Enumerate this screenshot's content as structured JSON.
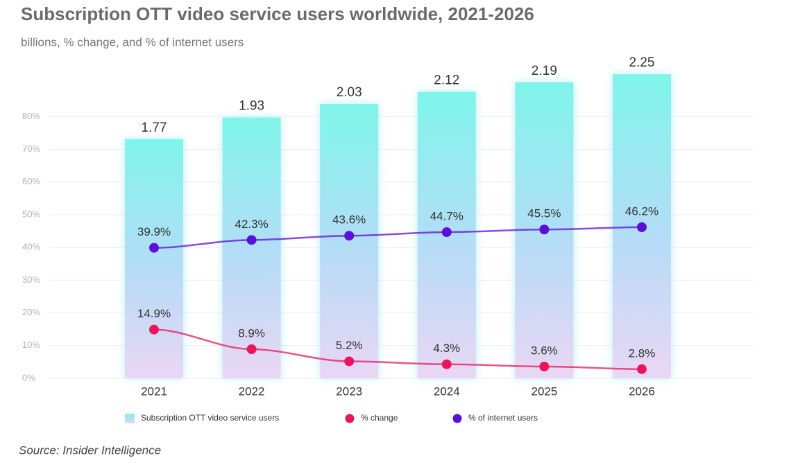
{
  "chart_data": {
    "type": "combo",
    "title": "Subscription OTT video service users worldwide, 2021-2026",
    "subtitle": "billions, % change, and % of internet users",
    "categories": [
      "2021",
      "2022",
      "2023",
      "2024",
      "2025",
      "2026"
    ],
    "series": [
      {
        "name": "Subscription OTT video service users",
        "type": "bar",
        "axis": "y2",
        "color": "#7ff5ea",
        "values": [
          1.77,
          1.93,
          2.03,
          2.12,
          2.19,
          2.25
        ]
      },
      {
        "name": "% change",
        "type": "line",
        "color": "#e8175d",
        "values": [
          14.9,
          8.9,
          5.2,
          4.3,
          3.6,
          2.8
        ],
        "value_labels": [
          "14.9%",
          "8.9%",
          "5.2%",
          "4.3%",
          "3.6%",
          "2.8%"
        ]
      },
      {
        "name": "% of internet users",
        "type": "line",
        "color": "#5b10d8",
        "values": [
          39.9,
          42.3,
          43.6,
          44.7,
          45.5,
          46.2
        ],
        "value_labels": [
          "39.9%",
          "42.3%",
          "43.6%",
          "44.7%",
          "45.5%",
          "46.2%"
        ]
      }
    ],
    "ylim": [
      0,
      100
    ],
    "yticks": [
      {
        "value": 0,
        "label": "0%"
      },
      {
        "value": 10,
        "label": "10%"
      },
      {
        "value": 20,
        "label": "20%"
      },
      {
        "value": 30,
        "label": "30%"
      },
      {
        "value": 40,
        "label": "40%"
      },
      {
        "value": 50,
        "label": "50%"
      },
      {
        "value": 60,
        "label": "60%"
      },
      {
        "value": 70,
        "label": "70%"
      },
      {
        "value": 80,
        "label": "80%"
      }
    ],
    "y2lim": [
      0,
      2.42
    ],
    "grid": true,
    "source": "Source: Insider Intelligence"
  }
}
